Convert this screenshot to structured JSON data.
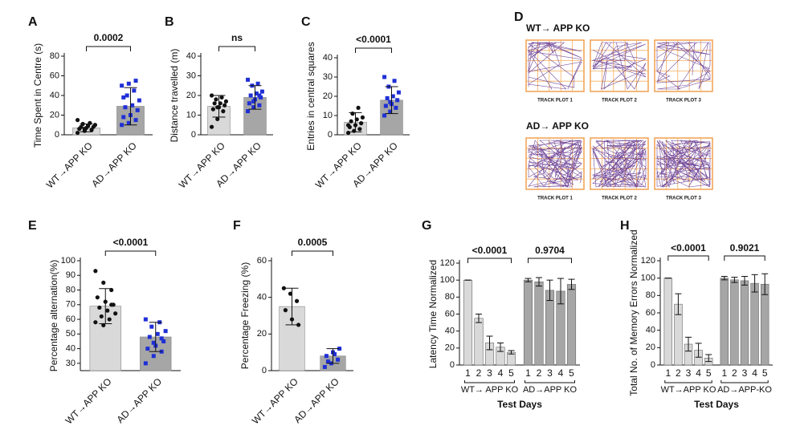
{
  "chart_data": [
    {
      "type": "bar",
      "panel": "A",
      "ylabel": "Time Spent in Centre (s)",
      "categories": [
        "WT→APP KO",
        "AD→APP KO"
      ],
      "values": [
        7,
        29
      ],
      "errors": [
        4,
        19
      ],
      "colors": [
        "#d9d9d9",
        "#a6a6a6"
      ],
      "point_colors": [
        "#111111",
        "#1f2fd6"
      ],
      "points": [
        [
          2,
          4,
          5,
          6,
          7,
          8,
          8,
          9,
          10,
          11,
          12,
          15,
          6
        ],
        [
          10,
          12,
          15,
          18,
          20,
          25,
          28,
          30,
          35,
          40,
          45,
          50,
          52,
          55,
          38
        ]
      ],
      "ylim": [
        0,
        80
      ],
      "yticks": [
        0,
        20,
        40,
        60,
        80
      ],
      "annotation": "0.0002"
    },
    {
      "type": "bar",
      "panel": "B",
      "ylabel": "Distance travelled (m)",
      "categories": [
        "WT→APP KO",
        "AD→APP KO"
      ],
      "values": [
        14.5,
        19
      ],
      "errors": [
        5.5,
        6
      ],
      "colors": [
        "#d9d9d9",
        "#a6a6a6"
      ],
      "point_colors": [
        "#111111",
        "#1f2fd6"
      ],
      "points": [
        [
          4,
          8,
          12,
          13,
          14,
          15,
          16,
          16,
          17,
          18,
          19,
          20,
          14
        ],
        [
          12,
          14,
          15,
          16,
          18,
          19,
          20,
          21,
          22,
          25,
          26,
          28,
          17,
          20
        ]
      ],
      "ylim": [
        0,
        40
      ],
      "yticks": [
        0,
        10,
        20,
        30,
        40
      ],
      "annotation": "ns"
    },
    {
      "type": "bar",
      "panel": "C",
      "ylabel": "Entries in central squares",
      "categories": [
        "WT→APP KO",
        "AD→APP KO"
      ],
      "values": [
        6.5,
        18
      ],
      "errors": [
        5,
        7
      ],
      "colors": [
        "#d9d9d9",
        "#a6a6a6"
      ],
      "point_colors": [
        "#111111",
        "#1f2fd6"
      ],
      "points": [
        [
          1,
          2,
          3,
          4,
          5,
          6,
          7,
          8,
          9,
          11,
          14,
          5
        ],
        [
          10,
          12,
          14,
          15,
          16,
          18,
          19,
          20,
          22,
          25,
          28,
          30,
          17
        ]
      ],
      "ylim": [
        0,
        40
      ],
      "yticks": [
        0,
        10,
        20,
        30,
        40
      ],
      "annotation": "<0.0001"
    },
    {
      "type": "image",
      "panel": "D",
      "groups": [
        {
          "label": "WT→ APP KO",
          "plots": [
            "TRACK PLOT 1",
            "TRACK PLOT 2",
            "TRACK PLOT 3"
          ]
        },
        {
          "label": "AD→ APP KO",
          "plots": [
            "TRACK PLOT 1",
            "TRACK PLOT 2",
            "TRACK PLOT 3"
          ]
        }
      ]
    },
    {
      "type": "bar",
      "panel": "E",
      "ylabel": "Percentage alternation(%)",
      "categories": [
        "WT→APP KO",
        "AD→APP KO"
      ],
      "values": [
        69,
        48
      ],
      "errors": [
        12,
        10
      ],
      "colors": [
        "#d9d9d9",
        "#a6a6a6"
      ],
      "point_colors": [
        "#111111",
        "#1f2fd6"
      ],
      "points": [
        [
          93,
          85,
          80,
          75,
          72,
          70,
          68,
          66,
          64,
          62,
          60,
          58,
          56,
          70
        ],
        [
          30,
          35,
          38,
          40,
          42,
          45,
          48,
          50,
          52,
          55,
          58,
          60,
          44,
          47
        ]
      ],
      "ylim": [
        25,
        100
      ],
      "yticks": [
        30,
        40,
        50,
        60,
        70,
        80,
        90,
        100
      ],
      "annotation": "<0.0001"
    },
    {
      "type": "bar",
      "panel": "F",
      "ylabel": "Percentage Freezing (%)",
      "categories": [
        "WT→APP KO",
        "AD→APP KO"
      ],
      "values": [
        35,
        8
      ],
      "errors": [
        10,
        4
      ],
      "colors": [
        "#d9d9d9",
        "#a6a6a6"
      ],
      "point_colors": [
        "#111111",
        "#1f2fd6"
      ],
      "points": [
        [
          45,
          42,
          38,
          33,
          28,
          25
        ],
        [
          2,
          4,
          6,
          8,
          10,
          12,
          5,
          9
        ]
      ],
      "ylim": [
        0,
        60
      ],
      "yticks": [
        0,
        20,
        40,
        60
      ],
      "annotation": "0.0005"
    },
    {
      "type": "grouped-bar",
      "panel": "G",
      "ylabel": "Latency  Time Normalized",
      "xlabel": "Test Days",
      "categories": [
        "1",
        "2",
        "3",
        "4",
        "5"
      ],
      "series": [
        {
          "name": "WT→ APP KO",
          "color": "#d9d9d9",
          "values": [
            100,
            55,
            26,
            21,
            15
          ],
          "errors": [
            0,
            5,
            8,
            5,
            2
          ],
          "annotation": "<0.0001"
        },
        {
          "name": "AD→APP KO",
          "color": "#a6a6a6",
          "values": [
            100,
            98,
            88,
            87,
            95
          ],
          "errors": [
            2,
            5,
            12,
            15,
            6
          ],
          "annotation": "0.9704"
        }
      ],
      "ylim": [
        0,
        120
      ],
      "yticks": [
        0,
        20,
        40,
        60,
        80,
        100,
        120
      ]
    },
    {
      "type": "grouped-bar",
      "panel": "H",
      "ylabel": "Total No. of Memory Errors Normalized",
      "xlabel": "Test Days",
      "categories": [
        "1",
        "2",
        "3",
        "4",
        "5"
      ],
      "series": [
        {
          "name": "WT→APP KO",
          "color": "#d9d9d9",
          "values": [
            100,
            70,
            24,
            17,
            8
          ],
          "errors": [
            0,
            12,
            8,
            8,
            4
          ],
          "annotation": "<0.0001"
        },
        {
          "name": "AD→APP-KO",
          "color": "#a6a6a6",
          "values": [
            100,
            98,
            97,
            94,
            93
          ],
          "errors": [
            2,
            3,
            5,
            10,
            12
          ],
          "annotation": "0.9021"
        }
      ],
      "ylim": [
        0,
        120
      ],
      "yticks": [
        0,
        20,
        40,
        60,
        80,
        100,
        120
      ]
    }
  ]
}
